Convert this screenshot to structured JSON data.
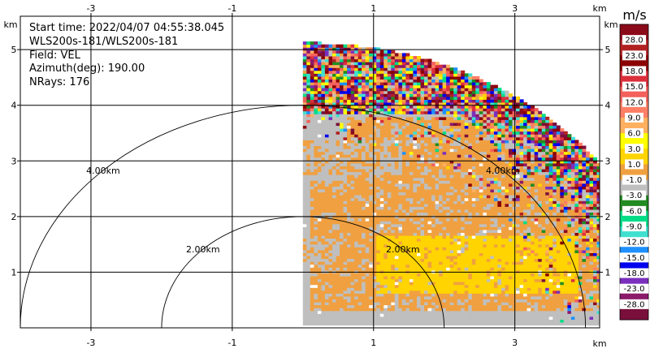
{
  "chart_data": {
    "type": "heatmap",
    "field": "VEL",
    "info": {
      "start_time": "Start time: 2022/04/07 04:55:38.045",
      "instrument": "WLS200s-181/WLS200s-181",
      "field": "Field: VEL",
      "azimuth": "Azimuth(deg): 190.00",
      "nrays": "NRays: 176"
    },
    "xlim": [
      -4.0,
      4.2
    ],
    "ylim": [
      0.0,
      5.6
    ],
    "x_ticks": [
      -3,
      -1,
      1,
      3
    ],
    "y_ticks": [
      1,
      2,
      3,
      4,
      5
    ],
    "x_unit": "km",
    "y_unit": "km",
    "grid": true,
    "range_rings": [
      {
        "radius_km": 2.0,
        "label": "2.00km"
      },
      {
        "radius_km": 4.0,
        "label": "4.00km"
      }
    ],
    "data_extent": {
      "x_min_km": 0.0,
      "max_range_km": 5.1
    },
    "colorbar": {
      "unit": "m/s",
      "labels": [
        "28.0",
        "23.0",
        "18.0",
        "15.0",
        "12.0",
        "9.0",
        "6.0",
        "3.0",
        "1.0",
        "-1.0",
        "-3.0",
        "-6.0",
        "-9.0",
        "-12.0",
        "-15.0",
        "-18.0",
        "-23.0",
        "-28.0"
      ],
      "colors": [
        "#8b0a1a",
        "#b22222",
        "#8b0000",
        "#dc2f3c",
        "#f4605a",
        "#ff7f66",
        "#ffb060",
        "#ffff00",
        "#ffd400",
        "#f0a040",
        "#bfbfbf",
        "#228b22",
        "#00dd88",
        "#40e0d0",
        "#1e90ff",
        "#0000ee",
        "#7b2fbe",
        "#8b1a6b",
        "#7a0f3c"
      ]
    },
    "velocity_regions": [
      {
        "value_class": "-1.0 to 1.0",
        "color": "#bfbfbf",
        "description": "background"
      },
      {
        "value_class": "1.0 to 3.0",
        "color": "#f0a040",
        "x_km": [
          0.1,
          4.1
        ],
        "y_km": [
          0.3,
          3.8
        ]
      },
      {
        "value_class": "3.0 to 6.0",
        "color": "#ffd400",
        "x_km": [
          1.0,
          3.9
        ],
        "y_km": [
          0.6,
          1.6
        ]
      }
    ]
  }
}
